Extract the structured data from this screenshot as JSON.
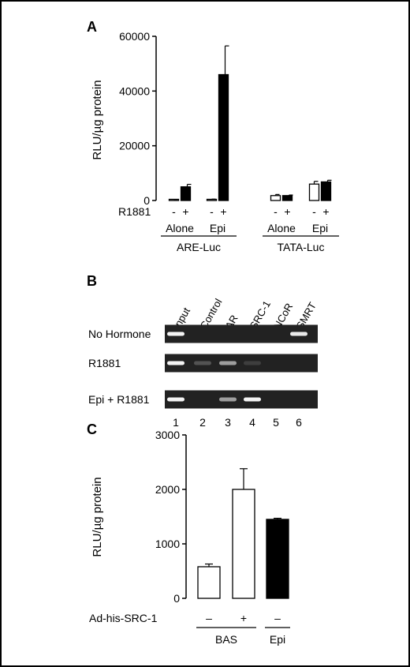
{
  "frame_color": "#000000",
  "chart_data": [
    {
      "panel": "A",
      "type": "bar",
      "ylabel": "RLU/µg protein",
      "ylim": [
        0,
        60000
      ],
      "yticks": [
        0,
        20000,
        40000,
        60000
      ],
      "row_label": "R1881",
      "groups": [
        {
          "label": "Alone",
          "construct": "ARE-Luc",
          "bars": [
            {
              "sign": "-",
              "value": 300,
              "error": 100,
              "fill": "#ffffff"
            },
            {
              "sign": "+",
              "value": 5000,
              "error": 900,
              "fill": "#000000"
            }
          ]
        },
        {
          "label": "Epi",
          "construct": "ARE-Luc",
          "bars": [
            {
              "sign": "-",
              "value": 400,
              "error": 100,
              "fill": "#ffffff"
            },
            {
              "sign": "+",
              "value": 46000,
              "error": 10500,
              "fill": "#000000"
            }
          ]
        },
        {
          "label": "Alone",
          "construct": "TATA-Luc",
          "bars": [
            {
              "sign": "-",
              "value": 1800,
              "error": 400,
              "fill": "#ffffff"
            },
            {
              "sign": "+",
              "value": 1800,
              "error": 200,
              "fill": "#000000"
            }
          ]
        },
        {
          "label": "Epi",
          "construct": "TATA-Luc",
          "bars": [
            {
              "sign": "-",
              "value": 6000,
              "error": 1000,
              "fill": "#ffffff"
            },
            {
              "sign": "+",
              "value": 6800,
              "error": 600,
              "fill": "#000000"
            }
          ]
        }
      ],
      "constructs": [
        "ARE-Luc",
        "TATA-Luc"
      ]
    },
    {
      "panel": "C",
      "type": "bar",
      "ylabel": "RLU/µg protein",
      "ylim": [
        0,
        3000
      ],
      "yticks": [
        0,
        1000,
        2000,
        3000
      ],
      "row_label": "Ad-his-SRC-1",
      "bars": [
        {
          "sign": "–",
          "value": 580,
          "error": 50,
          "fill": "#ffffff"
        },
        {
          "sign": "+",
          "value": 2000,
          "error": 380,
          "fill": "#ffffff"
        },
        {
          "sign": "–",
          "value": 1450,
          "error": 20,
          "fill": "#000000"
        }
      ],
      "groups": [
        {
          "label": "BAS",
          "bars": [
            0,
            1
          ]
        },
        {
          "label": "Epi",
          "bars": [
            2
          ]
        }
      ]
    }
  ],
  "gel": {
    "panel": "B",
    "lanes": [
      "Input",
      "Control",
      "AR",
      "SRC-1",
      "NCoR",
      "SMRT"
    ],
    "lane_numbers": [
      "1",
      "2",
      "3",
      "4",
      "5",
      "6"
    ],
    "rows": [
      {
        "label": "No Hormone",
        "bands": [
          0.95,
          0.0,
          0.0,
          0.0,
          0.0,
          0.9
        ]
      },
      {
        "label": "R1881",
        "bands": [
          0.95,
          0.2,
          0.55,
          0.1,
          0.0,
          0.0
        ]
      },
      {
        "label": "Epi + R1881",
        "bands": [
          0.95,
          0.0,
          0.55,
          0.95,
          0.0,
          0.0
        ]
      }
    ]
  }
}
